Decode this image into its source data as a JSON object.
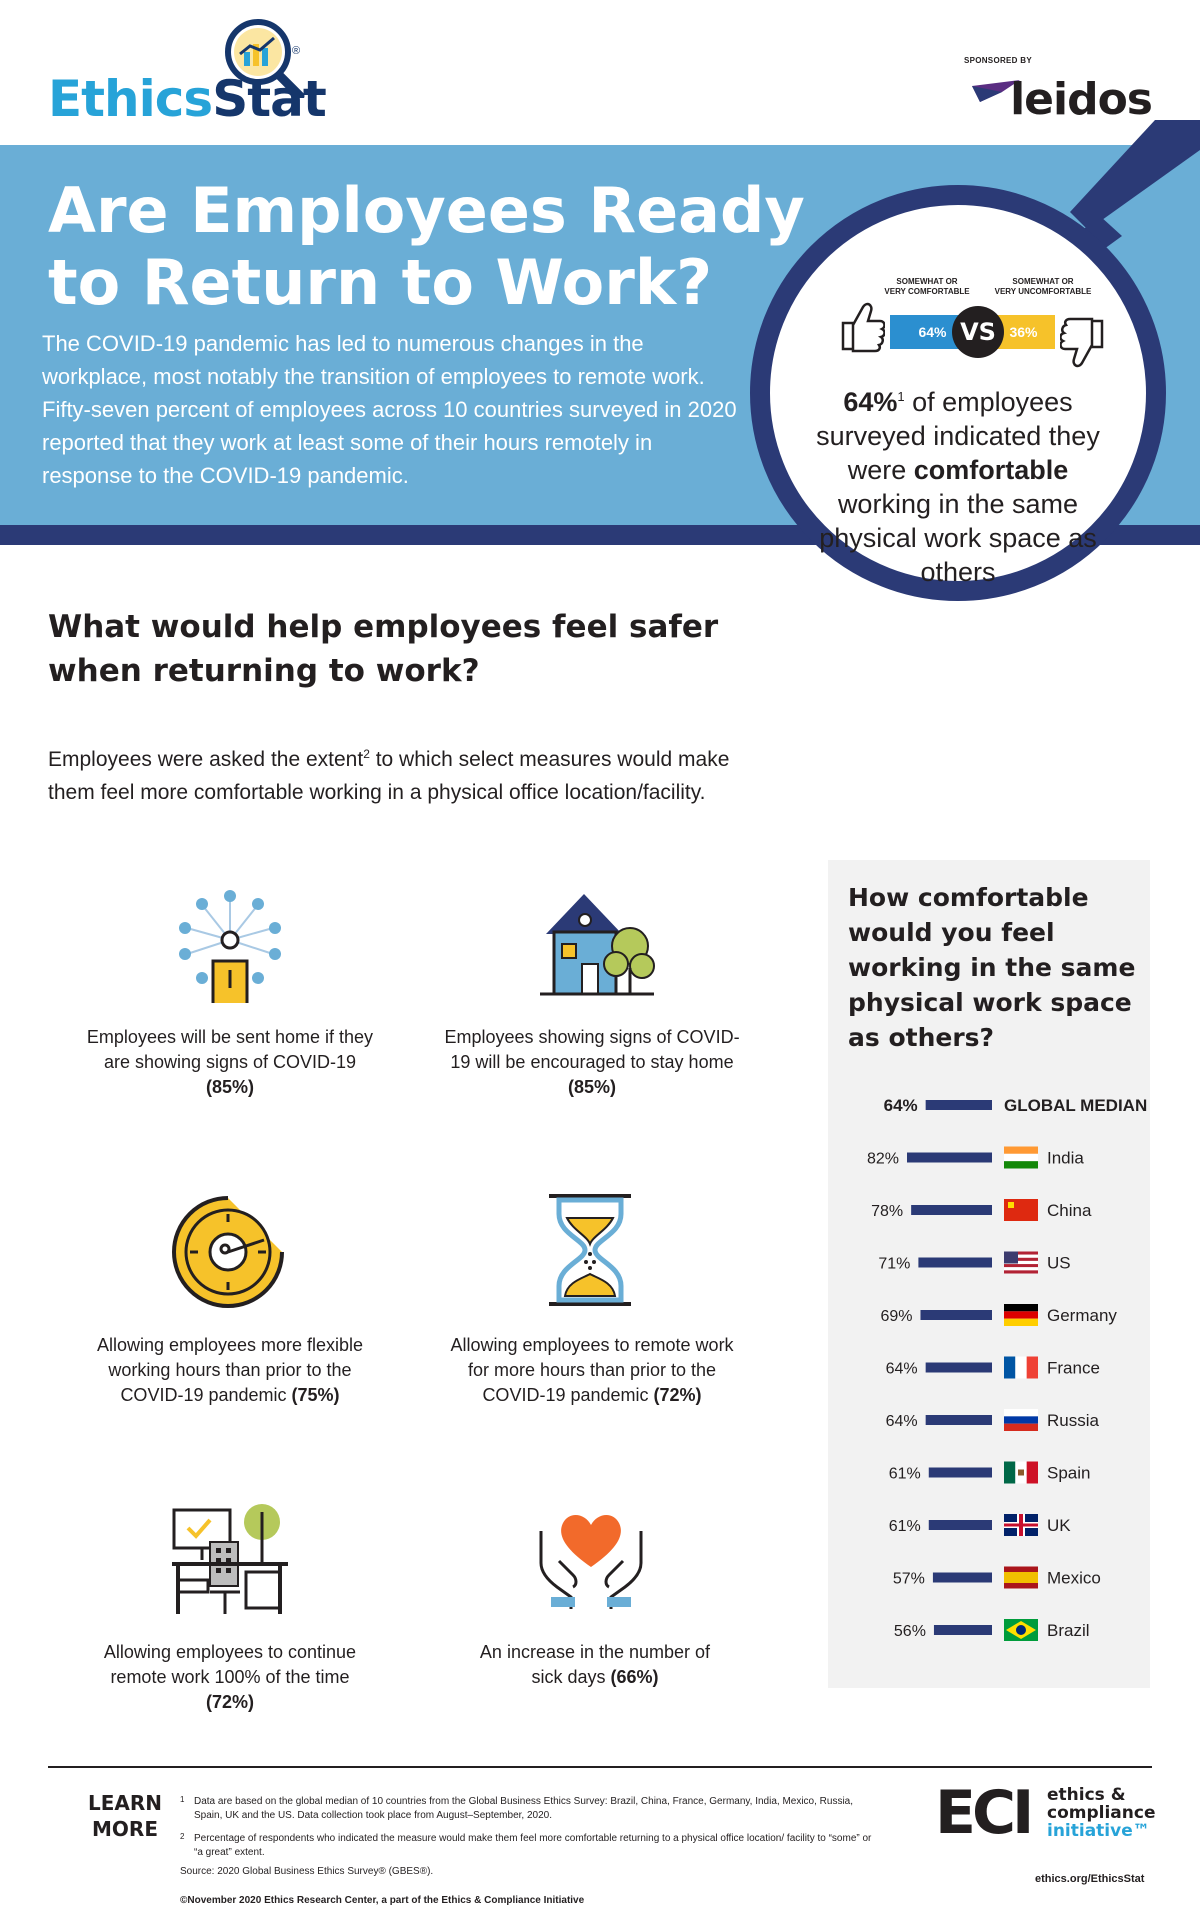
{
  "header": {
    "logo_part1": "Ethics",
    "logo_part2": "Stat",
    "logo_reg": "®",
    "sponsor_label": "SPONSORED BY",
    "sponsor_name": "leidos"
  },
  "hero": {
    "title": "Are Employees Ready to Return to Work?",
    "body": "The COVID-19 pandemic has led to numerous changes in the workplace, most notably the transition of employees to remote work. Fifty-seven percent of employees across 10 countries surveyed in 2020 reported that they work at least some of their hours remotely in response to the COVID-19 pandemic.",
    "comfort": {
      "label_left_1": "SOMEWHAT OR",
      "label_left_2": "VERY COMFORTABLE",
      "label_right_1": "SOMEWHAT OR",
      "label_right_2": "VERY UNCOMFORTABLE",
      "left_value": "64%",
      "right_value": "36%",
      "vs": "VS",
      "stat": "64%",
      "stat_sup": "1",
      "text_1": " of employees surveyed indicated they were ",
      "text_bold": "comfortable",
      "text_2": " working in the same physical work space as others"
    }
  },
  "section": {
    "title": "What would help employees feel safer when returning to work?",
    "intro_1": "Employees were asked the extent",
    "intro_sup": "2",
    "intro_2": " to which select measures would make them feel more comfortable working in a physical office location/facility."
  },
  "measures": [
    {
      "text": "Employees will be sent home if they are showing signs of COVID-19",
      "pct": "(85%)",
      "icon": "person-alert-icon"
    },
    {
      "text": "Employees showing signs of COVID-19 will be encouraged to stay home",
      "pct": "(85%)",
      "icon": "house-icon"
    },
    {
      "text": "Allowing employees more flexible working hours than prior to the COVID-19 pandemic",
      "pct": "(75%)",
      "icon": "clock-icon"
    },
    {
      "text": "Allowing employees to remote work for more hours than prior to the COVID-19 pandemic",
      "pct": "(72%)",
      "icon": "hourglass-icon"
    },
    {
      "text": "Allowing employees to continue remote work 100% of the time",
      "pct": "(72%)",
      "icon": "desk-icon"
    },
    {
      "text": "An increase in the number of sick days",
      "pct": "(66%)",
      "icon": "heart-hands-icon"
    }
  ],
  "chart_data": {
    "type": "bar",
    "title": "How comfortable would you feel working in the same physical work space as others?",
    "categories": [
      "GLOBAL MEDIAN",
      "India",
      "China",
      "US",
      "Germany",
      "France",
      "Russia",
      "Spain",
      "UK",
      "Mexico",
      "Brazil"
    ],
    "values": [
      64,
      82,
      78,
      71,
      69,
      64,
      64,
      61,
      61,
      57,
      56
    ],
    "labels": [
      "64%",
      "82%",
      "78%",
      "71%",
      "69%",
      "64%",
      "64%",
      "61%",
      "61%",
      "57%",
      "56%"
    ],
    "bar_color": "#2b3a76",
    "orientation": "horizontal-right-anchored"
  },
  "footer": {
    "learn_more": "LEARN MORE",
    "fn1_num": "1",
    "fn1": "Data are based on the global median of 10 countries from the Global Business Ethics Survey: Brazil, China, France, Germany, India, Mexico, Russia, Spain, UK and the US. Data collection took place from August–September, 2020.",
    "fn2_num": "2",
    "fn2": "Percentage of respondents who indicated the measure would make them feel more comfortable returning to a physical office location/ facility to “some” or “a great” extent.",
    "source": "Source: 2020 Global Business Ethics Survey® (GBES®).",
    "copyright": "©November 2020 Ethics Research Center, a part of the Ethics & Compliance Initiative",
    "eci_mark": "ECI",
    "eci_line1": "ethics &",
    "eci_line2": "compliance",
    "eci_line3": "initiative™",
    "eci_url": "ethics.org/EthicsStat"
  },
  "colors": {
    "hero_blue": "#6aaed6",
    "navy": "#2b3a76",
    "cyan": "#27a3d8",
    "yellow": "#f6c22a"
  }
}
